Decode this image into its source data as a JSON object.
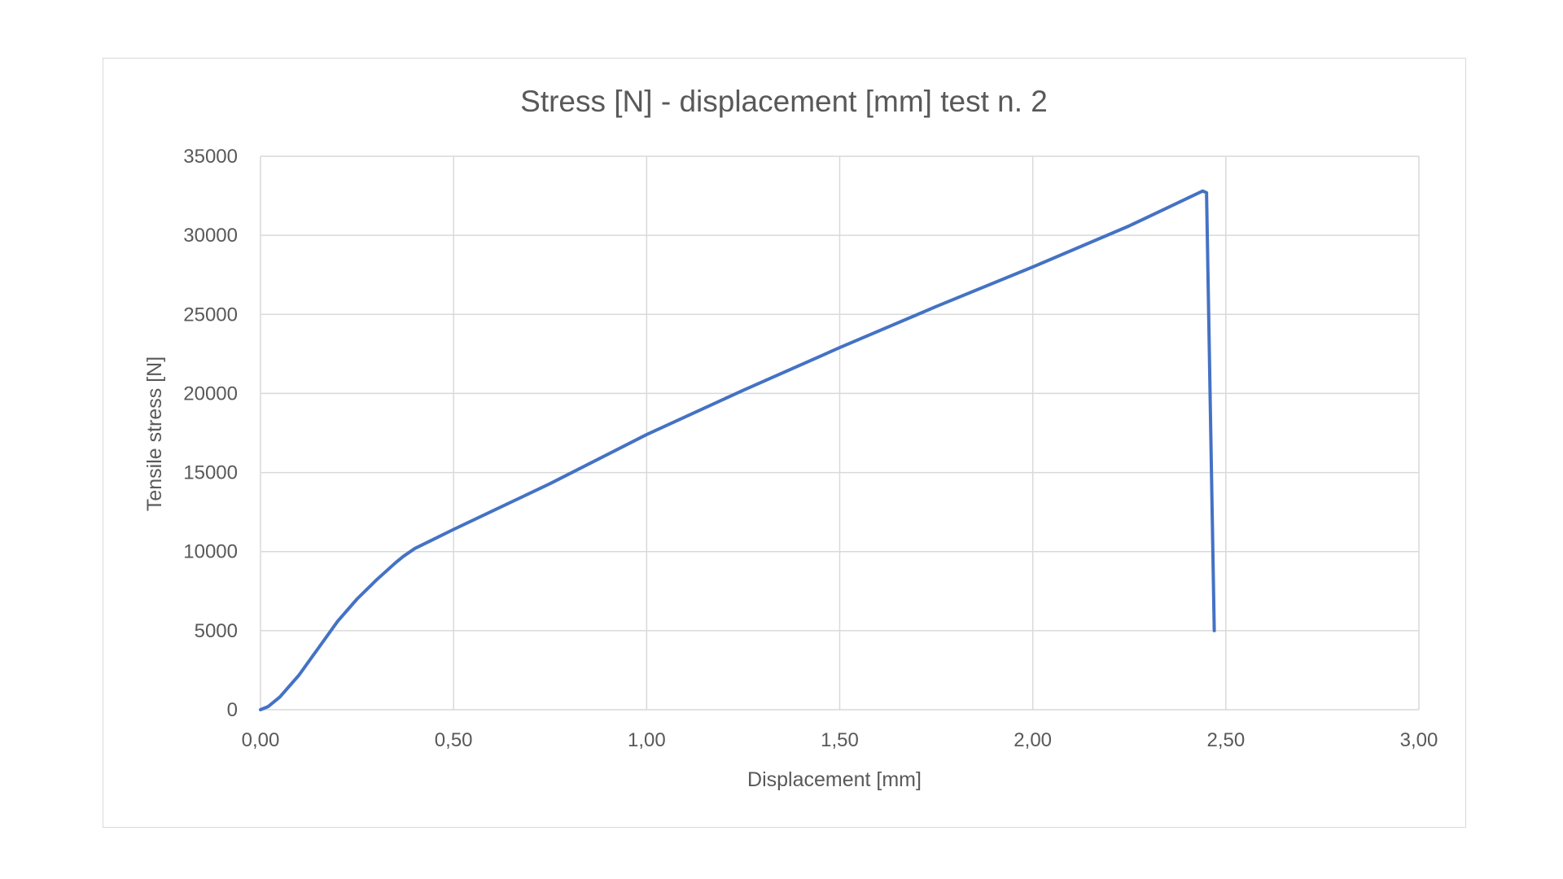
{
  "chart_data": {
    "type": "line",
    "title": "Stress [N] - displacement [mm] test n. 2",
    "xlabel": "Displacement [mm]",
    "ylabel": "Tensile stress [N]",
    "xlim": [
      0,
      3
    ],
    "ylim": [
      0,
      35000
    ],
    "x_ticks": [
      0,
      0.5,
      1,
      1.5,
      2,
      2.5,
      3
    ],
    "x_tick_labels": [
      "0,00",
      "0,50",
      "1,00",
      "1,50",
      "2,00",
      "2,50",
      "3,00"
    ],
    "y_ticks": [
      0,
      5000,
      10000,
      15000,
      20000,
      25000,
      30000,
      35000
    ],
    "y_tick_labels": [
      "0",
      "5000",
      "10000",
      "15000",
      "20000",
      "25000",
      "30000",
      "35000"
    ],
    "grid": true,
    "legend": "none",
    "series": [
      {
        "color": "#4472c4",
        "points": [
          [
            0.0,
            0
          ],
          [
            0.02,
            200
          ],
          [
            0.05,
            800
          ],
          [
            0.1,
            2200
          ],
          [
            0.15,
            3900
          ],
          [
            0.2,
            5600
          ],
          [
            0.25,
            7000
          ],
          [
            0.3,
            8200
          ],
          [
            0.35,
            9300
          ],
          [
            0.37,
            9700
          ],
          [
            0.4,
            10200
          ],
          [
            0.45,
            10800
          ],
          [
            0.5,
            11400
          ],
          [
            0.75,
            14300
          ],
          [
            1.0,
            17400
          ],
          [
            1.25,
            20200
          ],
          [
            1.5,
            22900
          ],
          [
            1.75,
            25500
          ],
          [
            2.0,
            28000
          ],
          [
            2.25,
            30600
          ],
          [
            2.44,
            32800
          ],
          [
            2.45,
            32700
          ],
          [
            2.47,
            5000
          ]
        ]
      }
    ]
  }
}
